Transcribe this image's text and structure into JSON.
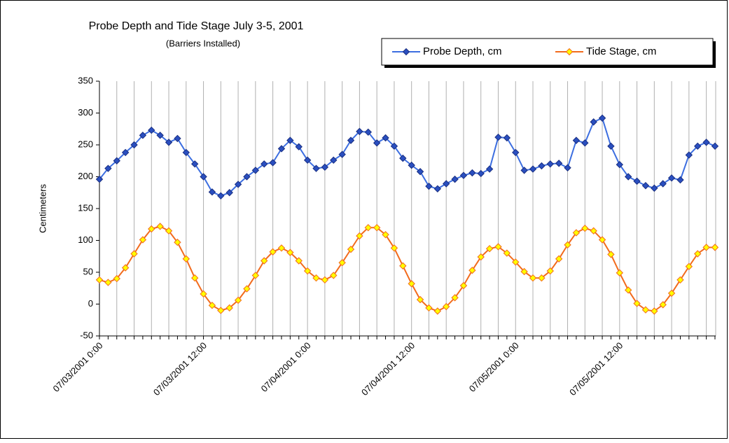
{
  "chart_data": {
    "type": "line",
    "title": "Probe Depth and Tide Stage July 3-5, 2001",
    "subtitle": "(Barriers Installed)",
    "y_label": "Centimeters",
    "categories": [
      "07/03/2001 0:00",
      null,
      null,
      null,
      null,
      null,
      null,
      null,
      null,
      null,
      null,
      null,
      "07/03/2001 12:00",
      null,
      null,
      null,
      null,
      null,
      null,
      null,
      null,
      null,
      null,
      null,
      "07/04/2001 0:00",
      null,
      null,
      null,
      null,
      null,
      null,
      null,
      null,
      null,
      null,
      null,
      "07/04/2001 12:00",
      null,
      null,
      null,
      null,
      null,
      null,
      null,
      null,
      null,
      null,
      null,
      "07/05/2001 0:00",
      null,
      null,
      null,
      null,
      null,
      null,
      null,
      null,
      null,
      null,
      null,
      "07/05/2001 12:00",
      null,
      null,
      null,
      null,
      null,
      null,
      null,
      null,
      null,
      null,
      null
    ],
    "series": [
      {
        "name": "Probe Depth, cm",
        "color": "#3c6ee0",
        "marker_color": "#2a4fc0",
        "values": [
          196,
          213,
          225,
          238,
          250,
          265,
          273,
          265,
          254,
          260,
          238,
          220,
          200,
          176,
          170,
          175,
          188,
          200,
          210,
          220,
          222,
          244,
          257,
          247,
          226,
          213,
          215,
          226,
          235,
          257,
          271,
          270,
          253,
          261,
          248,
          229,
          218,
          208,
          185,
          181,
          189,
          196,
          202,
          206,
          205,
          212,
          262,
          261,
          238,
          210,
          212,
          217,
          220,
          221,
          214,
          257,
          253,
          286,
          292,
          248,
          219,
          200,
          193,
          186,
          182,
          189,
          198,
          195,
          234,
          248,
          254,
          248
        ]
      },
      {
        "name": "Tide Stage, cm",
        "color": "#f26b1d",
        "marker_color": "#ffff00",
        "values": [
          38,
          34,
          40,
          57,
          79,
          101,
          118,
          122,
          115,
          97,
          71,
          41,
          16,
          -2,
          -10,
          -6,
          6,
          24,
          45,
          68,
          82,
          88,
          81,
          68,
          52,
          41,
          38,
          45,
          65,
          86,
          107,
          120,
          120,
          109,
          88,
          60,
          32,
          7,
          -6,
          -11,
          -4,
          10,
          29,
          53,
          74,
          87,
          90,
          80,
          66,
          51,
          41,
          41,
          52,
          71,
          93,
          112,
          119,
          115,
          101,
          78,
          49,
          22,
          1,
          -9,
          -11,
          -1,
          17,
          38,
          59,
          79,
          89,
          89
        ]
      }
    ],
    "ylim": [
      -50,
      350
    ],
    "yticks": [
      -50,
      0,
      50,
      100,
      150,
      200,
      250,
      300,
      350
    ],
    "grid": true,
    "legend": "top-right"
  }
}
